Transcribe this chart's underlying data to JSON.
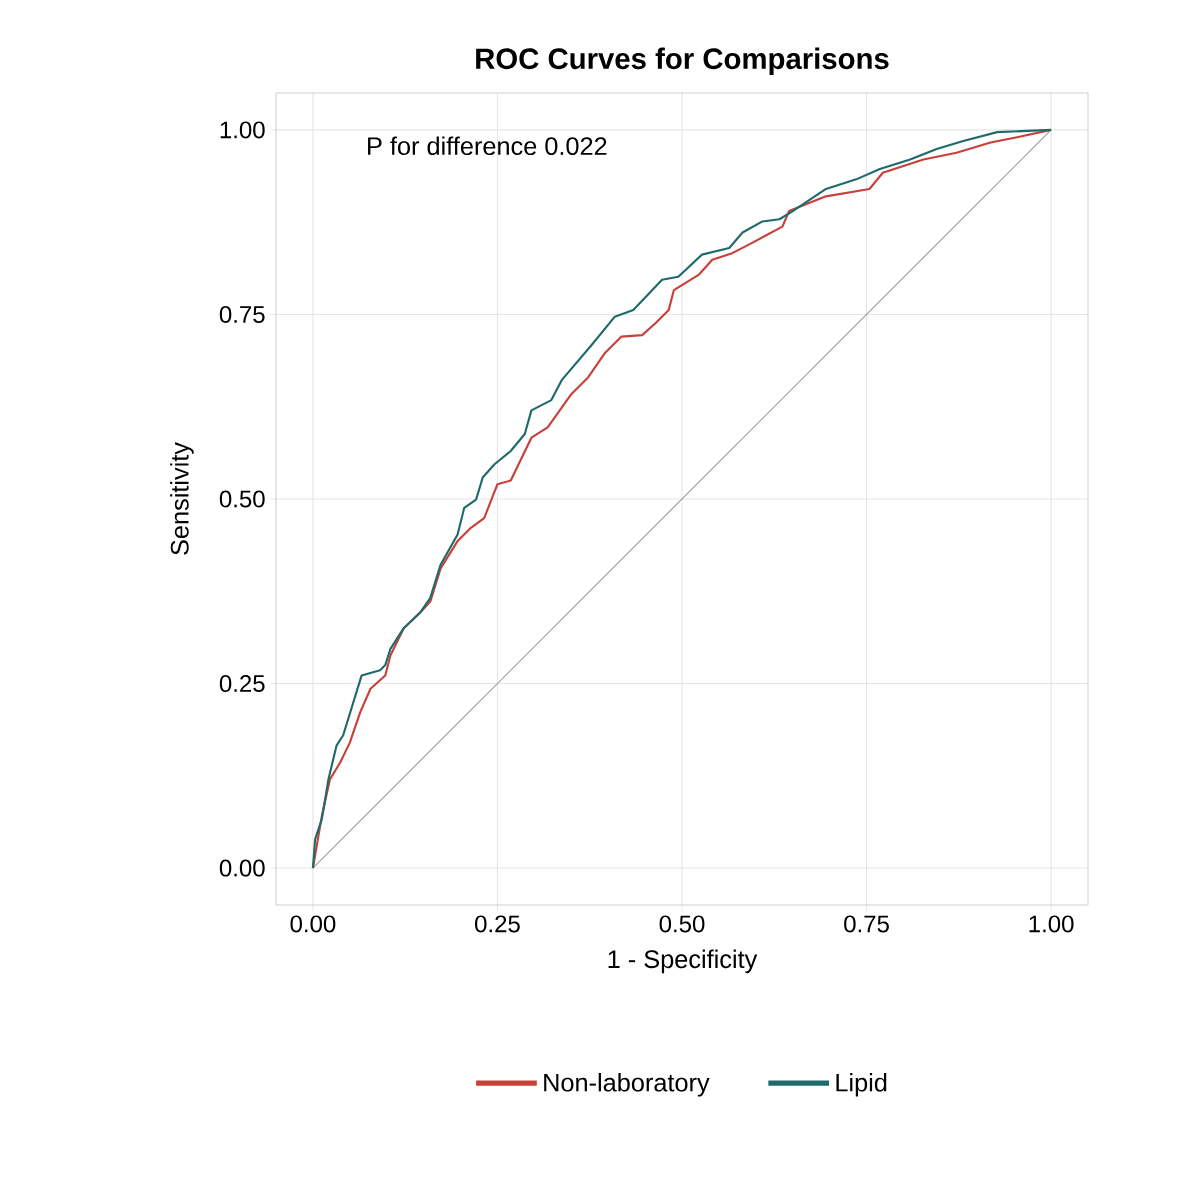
{
  "chart_data": {
    "type": "line",
    "title": "ROC Curves for Comparisons",
    "xlabel": "1 - Specificity",
    "ylabel": "Sensitivity",
    "annotations": [
      "P for difference 0.022"
    ],
    "xlim": [
      -0.05,
      1.05
    ],
    "ylim": [
      -0.05,
      1.05
    ],
    "xticks": [
      {
        "value": 0,
        "label": "0.00"
      },
      {
        "value": 0.25,
        "label": "0.25"
      },
      {
        "value": 0.5,
        "label": "0.50"
      },
      {
        "value": 0.75,
        "label": "0.75"
      },
      {
        "value": 1,
        "label": "1.00"
      }
    ],
    "yticks": [
      {
        "value": 0,
        "label": "0.00"
      },
      {
        "value": 0.25,
        "label": "0.25"
      },
      {
        "value": 0.5,
        "label": "0.50"
      },
      {
        "value": 0.75,
        "label": "0.75"
      },
      {
        "value": 1,
        "label": "1.00"
      }
    ],
    "grid": true,
    "legend": "bottom",
    "marker": "none",
    "line_style": "solid",
    "series": [
      {
        "color": "#a0a0a0",
        "x": [
          0,
          1
        ],
        "values": [
          0,
          1
        ]
      },
      {
        "name": "Non-laboratory",
        "color": "#c8403a",
        "x": [
          0,
          0.012,
          0.023,
          0.037,
          0.05,
          0.064,
          0.078,
          0.098,
          0.105,
          0.123,
          0.146,
          0.159,
          0.173,
          0.196,
          0.214,
          0.232,
          0.25,
          0.268,
          0.296,
          0.318,
          0.35,
          0.373,
          0.395,
          0.418,
          0.446,
          0.464,
          0.482,
          0.489,
          0.523,
          0.541,
          0.568,
          0.595,
          0.636,
          0.645,
          0.695,
          0.754,
          0.772,
          0.827,
          0.872,
          0.918,
          0.954,
          1.0
        ],
        "values": [
          0,
          0.07,
          0.12,
          0.143,
          0.17,
          0.211,
          0.243,
          0.261,
          0.288,
          0.325,
          0.347,
          0.361,
          0.406,
          0.443,
          0.461,
          0.474,
          0.52,
          0.525,
          0.583,
          0.597,
          0.642,
          0.665,
          0.697,
          0.72,
          0.722,
          0.738,
          0.756,
          0.783,
          0.804,
          0.824,
          0.833,
          0.847,
          0.869,
          0.89,
          0.91,
          0.92,
          0.942,
          0.96,
          0.969,
          0.983,
          0.99,
          1.0
        ]
      },
      {
        "name": "Lipid",
        "color": "#1f6b6b",
        "x": [
          0,
          0.003,
          0.012,
          0.021,
          0.032,
          0.041,
          0.066,
          0.091,
          0.098,
          0.105,
          0.123,
          0.146,
          0.159,
          0.173,
          0.196,
          0.205,
          0.221,
          0.23,
          0.246,
          0.268,
          0.287,
          0.296,
          0.323,
          0.337,
          0.377,
          0.409,
          0.434,
          0.473,
          0.495,
          0.527,
          0.564,
          0.582,
          0.609,
          0.632,
          0.65,
          0.695,
          0.736,
          0.768,
          0.809,
          0.845,
          0.881,
          0.927,
          1.0
        ],
        "values": [
          0,
          0.039,
          0.066,
          0.12,
          0.166,
          0.18,
          0.261,
          0.268,
          0.275,
          0.297,
          0.325,
          0.347,
          0.366,
          0.411,
          0.452,
          0.488,
          0.499,
          0.529,
          0.547,
          0.565,
          0.588,
          0.62,
          0.634,
          0.661,
          0.708,
          0.747,
          0.756,
          0.797,
          0.801,
          0.831,
          0.84,
          0.861,
          0.876,
          0.879,
          0.89,
          0.92,
          0.933,
          0.947,
          0.96,
          0.974,
          0.985,
          0.997,
          1.0
        ]
      }
    ]
  }
}
